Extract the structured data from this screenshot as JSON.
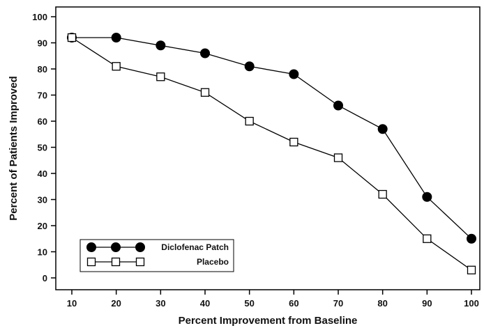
{
  "chart_data": {
    "type": "line",
    "title": "",
    "xlabel": "Percent Improvement from Baseline",
    "ylabel": "Percent of Patients Improved",
    "x": [
      10,
      20,
      30,
      40,
      50,
      60,
      70,
      80,
      90,
      100
    ],
    "xlim": [
      10,
      100
    ],
    "ylim": [
      0,
      100
    ],
    "xticks": [
      "10",
      "20",
      "30",
      "40",
      "50",
      "60",
      "70",
      "80",
      "90",
      "100"
    ],
    "yticks": [
      "0",
      "10",
      "20",
      "30",
      "40",
      "50",
      "60",
      "70",
      "80",
      "90",
      "100"
    ],
    "grid": false,
    "legend_position": "bottom-left",
    "series": [
      {
        "name": "Diclofenac Patch",
        "marker": "filled-circle",
        "color": "#000000",
        "values": [
          92,
          92,
          89,
          86,
          81,
          78,
          66,
          57,
          31,
          15
        ]
      },
      {
        "name": "Placebo",
        "marker": "open-square",
        "color": "#000000",
        "values": [
          92,
          81,
          77,
          71,
          60,
          52,
          46,
          32,
          15,
          3
        ]
      }
    ]
  }
}
